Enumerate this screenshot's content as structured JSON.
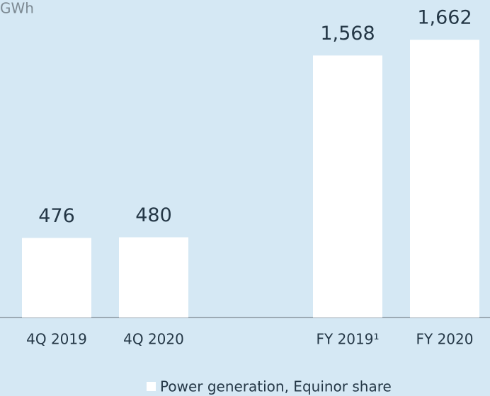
{
  "chart_data": {
    "type": "bar",
    "y_unit": "GWh",
    "categories": [
      "4Q 2019",
      "4Q 2020",
      null,
      "FY 2019¹",
      "FY 2020"
    ],
    "values": [
      476,
      480,
      null,
      1568,
      1662
    ],
    "value_labels": [
      "476",
      "480",
      null,
      "1,568",
      "1,662"
    ],
    "color": "#ffffff",
    "series_name": "Power generation, Equinor share",
    "ylim": [
      0,
      1900
    ]
  }
}
